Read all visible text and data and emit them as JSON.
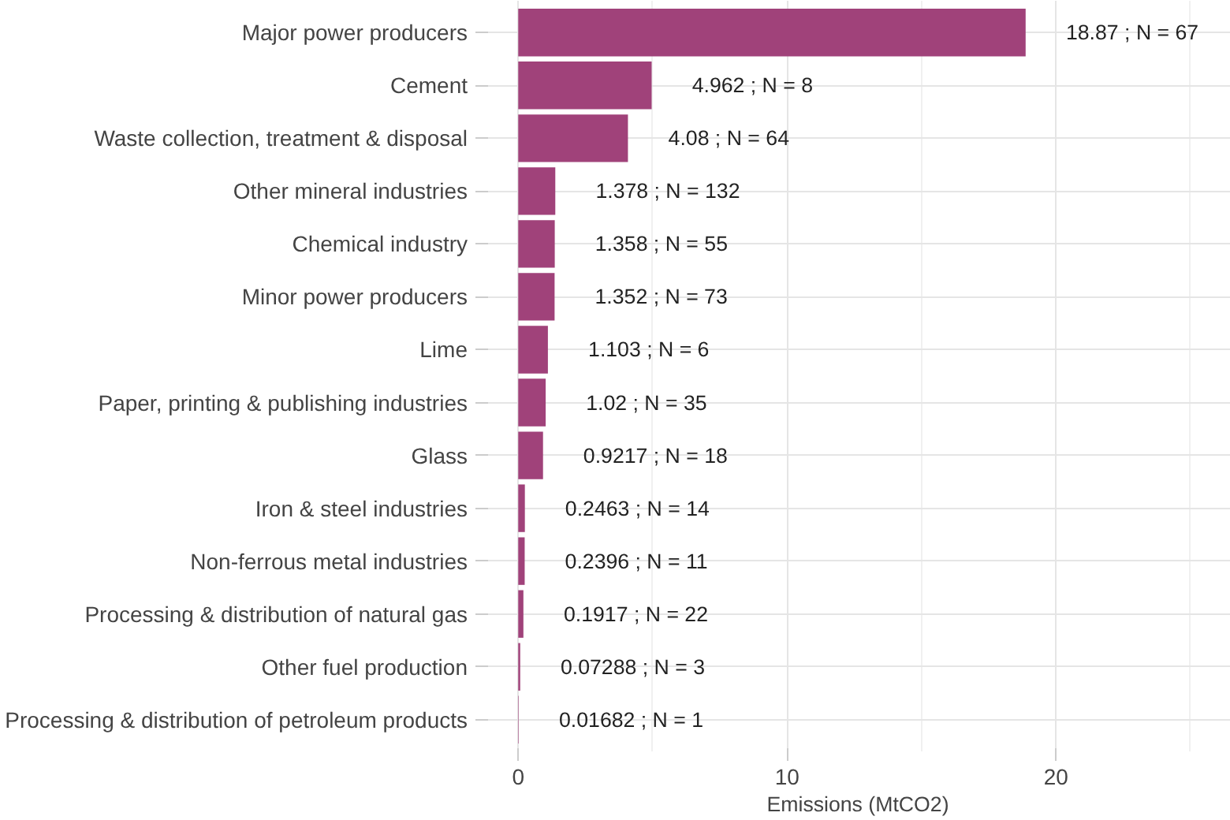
{
  "chart_data": {
    "type": "bar",
    "orientation": "horizontal",
    "xlabel": "Emissions (MtCO2)",
    "categories": [
      "Major power producers",
      "Cement",
      "Waste collection, treatment & disposal",
      "Other mineral industries",
      "Chemical industry",
      "Minor power producers",
      "Lime",
      "Paper, printing & publishing industries",
      "Glass",
      "Iron & steel industries",
      "Non-ferrous metal industries",
      "Processing & distribution of natural gas",
      "Other fuel production",
      "Processing & distribution of petroleum products"
    ],
    "values": [
      18.87,
      4.962,
      4.08,
      1.378,
      1.358,
      1.352,
      1.103,
      1.02,
      0.9217,
      0.2463,
      0.2396,
      0.1917,
      0.07288,
      0.01682
    ],
    "value_labels": [
      "18.87 ; N = 67",
      "4.962 ; N = 8",
      "4.08 ; N = 64",
      "1.378 ; N = 132",
      "1.358 ; N = 55",
      "1.352 ; N = 73",
      "1.103 ; N = 6",
      "1.02 ; N = 35",
      "0.9217 ; N = 18",
      "0.2463 ; N = 14",
      "0.2396 ; N = 11",
      "0.1917 ; N = 22",
      "0.07288 ; N = 3",
      "0.01682 ; N = 1"
    ],
    "color": "#a0427a",
    "xlim": [
      -1.24,
      26.5
    ],
    "xticks": [
      0,
      10,
      20
    ],
    "grid": true
  }
}
